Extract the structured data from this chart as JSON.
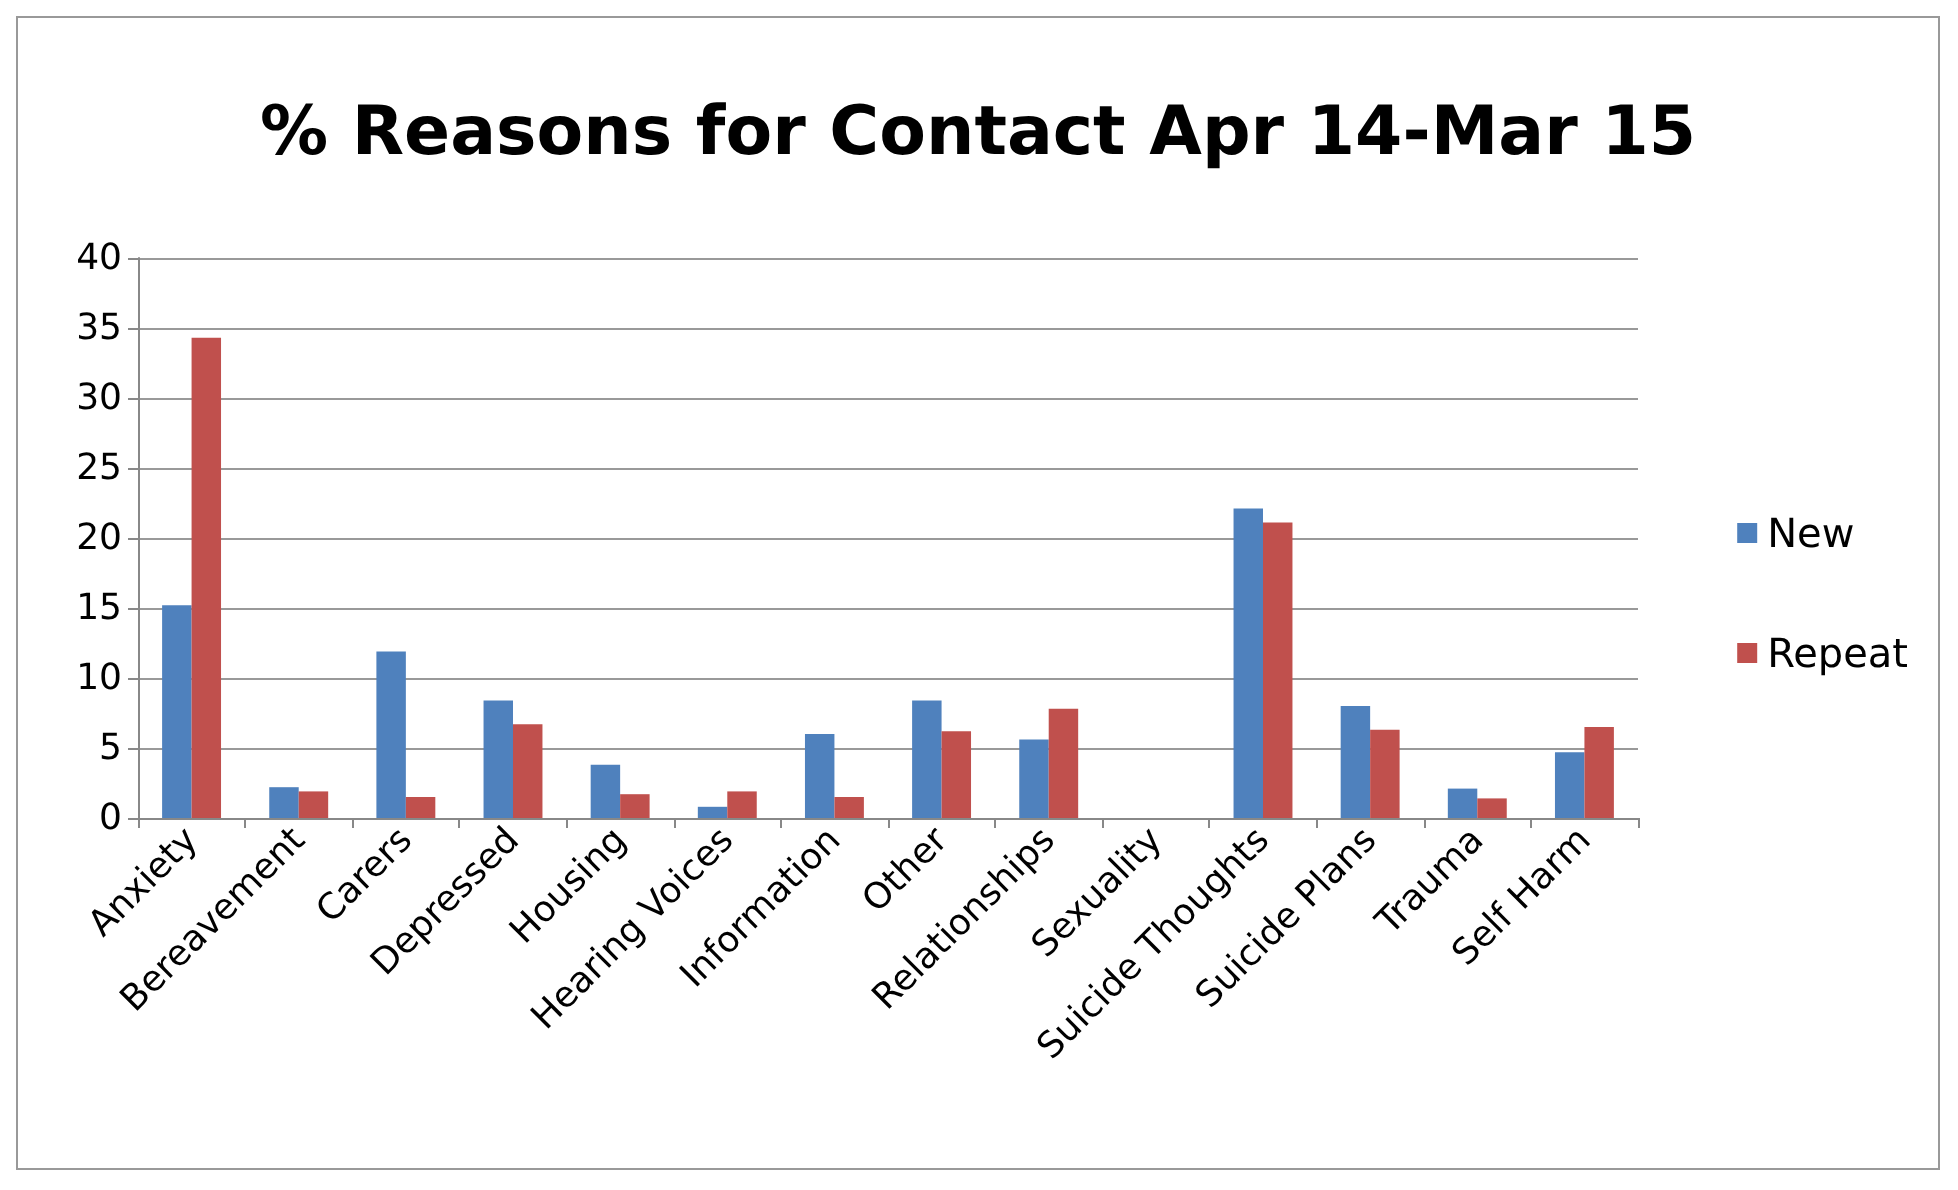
{
  "chart_data": {
    "type": "bar",
    "title": "% Reasons for Contact Apr 14-Mar 15",
    "categories": [
      "Anxiety",
      "Bereavement",
      "Carers",
      "Depressed",
      "Housing",
      "Hearing Voices",
      "Information",
      "Other",
      "Relationships",
      "Sexuality",
      "Suicide Thoughts",
      "Suicide Plans",
      "Trauma",
      "Self Harm"
    ],
    "series": [
      {
        "name": "New",
        "color": "#4f81bd",
        "values": [
          15.2,
          2.2,
          11.9,
          8.4,
          3.8,
          0.8,
          6.0,
          8.4,
          5.6,
          0,
          22.1,
          8.0,
          2.1,
          4.7
        ]
      },
      {
        "name": "Repeat",
        "color": "#c0504d",
        "values": [
          34.3,
          1.9,
          1.5,
          6.7,
          1.7,
          1.9,
          1.5,
          6.2,
          7.8,
          0,
          21.1,
          6.3,
          1.4,
          6.5
        ]
      }
    ],
    "ylim": [
      0,
      40
    ],
    "yticks": [
      0,
      5,
      10,
      15,
      20,
      25,
      30,
      35,
      40
    ],
    "grid": "y",
    "legend": "right"
  }
}
